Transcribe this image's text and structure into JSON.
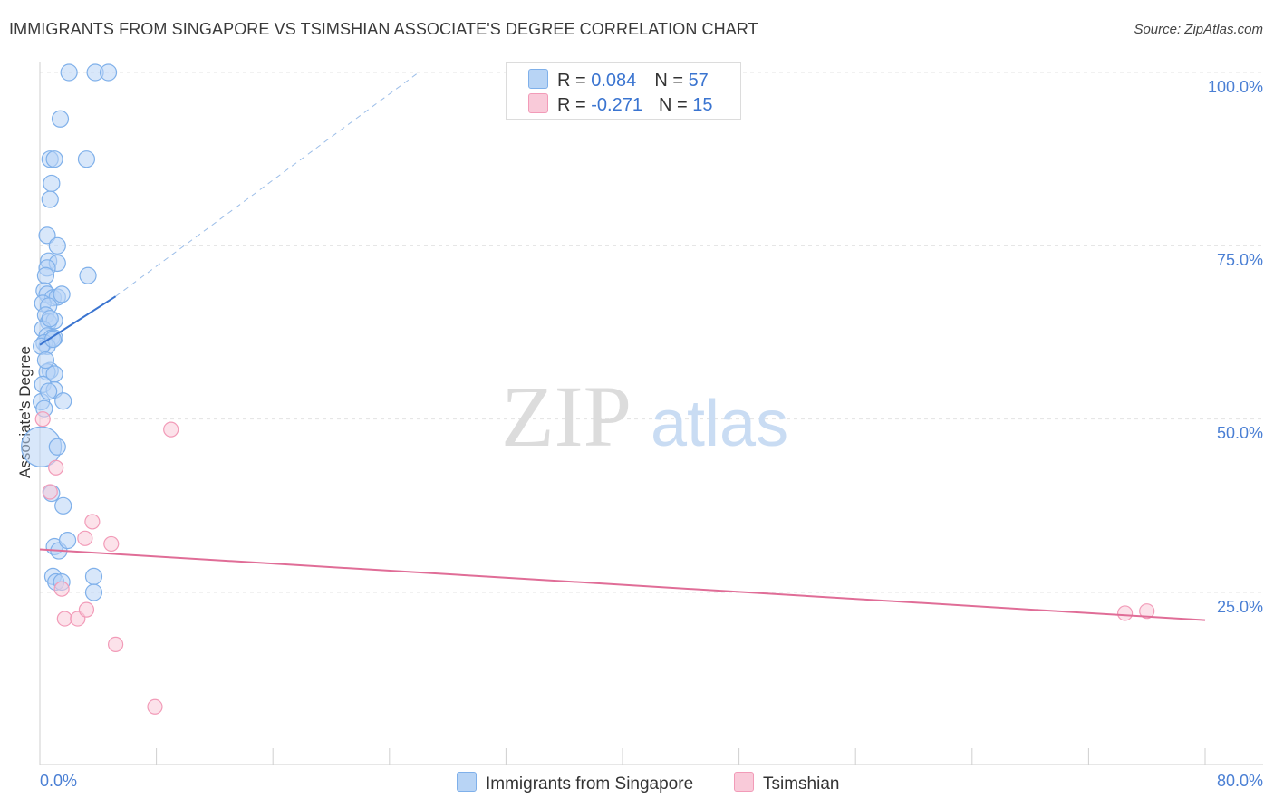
{
  "chart_data": {
    "type": "scatter",
    "title": "IMMIGRANTS FROM SINGAPORE VS TSIMSHIAN ASSOCIATE'S DEGREE CORRELATION CHART",
    "source": "Source: ZipAtlas.com",
    "ylabel": "Associate's Degree",
    "xlabel": "",
    "xlim": [
      0,
      80
    ],
    "ylim": [
      0,
      102
    ],
    "x_tick_labels": [
      "0.0%",
      "80.0%"
    ],
    "y_tick_labels": [
      "100.0%",
      "75.0%",
      "50.0%",
      "25.0%"
    ],
    "y_tick_values": [
      100,
      75,
      50,
      25
    ],
    "watermark": {
      "zip": "ZIP",
      "atlas": "atlas"
    },
    "legend": [
      {
        "r_label": "R = ",
        "r_value": "0.084",
        "n_label": "N = ",
        "n_value": "57"
      },
      {
        "r_label": "R = ",
        "r_value": "-0.271",
        "n_label": "N = ",
        "n_value": "15"
      }
    ],
    "series": [
      {
        "name": "Immigrants from Singapore",
        "color": "#7fb0ea",
        "fill": "#b8d4f5",
        "trend": {
          "x0": 0,
          "y0": 60.7,
          "x1": 5.2,
          "y1": 67.7,
          "dash_x1": 26,
          "dash_y1": 100
        },
        "points": [
          [
            2.0,
            100
          ],
          [
            3.8,
            100
          ],
          [
            4.7,
            100
          ],
          [
            1.4,
            93.3
          ],
          [
            0.7,
            87.5
          ],
          [
            1.0,
            87.5
          ],
          [
            3.2,
            87.5
          ],
          [
            0.8,
            84.0
          ],
          [
            0.7,
            81.7
          ],
          [
            0.5,
            76.5
          ],
          [
            1.2,
            75.0
          ],
          [
            0.6,
            72.8
          ],
          [
            1.2,
            72.5
          ],
          [
            0.5,
            71.8
          ],
          [
            0.4,
            70.7
          ],
          [
            3.3,
            70.7
          ],
          [
            0.3,
            68.5
          ],
          [
            0.5,
            68.0
          ],
          [
            0.9,
            67.5
          ],
          [
            1.2,
            67.6
          ],
          [
            1.5,
            68.0
          ],
          [
            0.2,
            66.7
          ],
          [
            0.6,
            66.3
          ],
          [
            0.4,
            65.0
          ],
          [
            0.6,
            64.0
          ],
          [
            1.0,
            64.2
          ],
          [
            0.2,
            63.0
          ],
          [
            0.5,
            62.0
          ],
          [
            0.8,
            61.7
          ],
          [
            1.0,
            61.7
          ],
          [
            0.3,
            61.0
          ],
          [
            0.5,
            60.5
          ],
          [
            0.1,
            60.5
          ],
          [
            0.7,
            57.0
          ],
          [
            0.5,
            56.8
          ],
          [
            1.0,
            56.5
          ],
          [
            0.2,
            55.0
          ],
          [
            1.0,
            54.2
          ],
          [
            1.6,
            52.6
          ],
          [
            0.1,
            52.5
          ],
          [
            0.3,
            51.5
          ],
          [
            0.1,
            46.0
          ],
          [
            1.2,
            46.0
          ],
          [
            0.8,
            39.3
          ],
          [
            1.6,
            37.5
          ],
          [
            1.0,
            31.6
          ],
          [
            1.3,
            31.0
          ],
          [
            1.9,
            32.5
          ],
          [
            0.9,
            27.3
          ],
          [
            1.1,
            26.5
          ],
          [
            1.5,
            26.5
          ],
          [
            3.7,
            27.3
          ],
          [
            3.7,
            25.0
          ],
          [
            0.6,
            54.0
          ],
          [
            0.4,
            58.5
          ],
          [
            0.9,
            61.5
          ],
          [
            0.7,
            64.5
          ]
        ],
        "point_sizes": [
          9,
          9,
          9,
          9,
          9,
          9,
          9,
          9,
          9,
          9,
          9,
          9,
          9,
          9,
          9,
          9,
          9,
          9,
          9,
          9,
          9,
          9,
          9,
          9,
          9,
          9,
          9,
          9,
          9,
          9,
          9,
          9,
          9,
          9,
          9,
          9,
          9,
          9,
          9,
          9,
          9,
          22,
          9,
          9,
          9,
          9,
          9,
          9,
          9,
          9,
          9,
          9,
          9,
          9,
          9,
          9,
          9
        ]
      },
      {
        "name": "Tsimshian",
        "color": "#f29bb8",
        "fill": "#f9cad9",
        "trend": {
          "x0": 0,
          "y0": 31.2,
          "x1": 80,
          "y1": 21.0
        },
        "points": [
          [
            0.2,
            50.0
          ],
          [
            9.0,
            48.5
          ],
          [
            1.1,
            43.0
          ],
          [
            0.7,
            39.5
          ],
          [
            3.6,
            35.2
          ],
          [
            3.1,
            32.8
          ],
          [
            4.9,
            32.0
          ],
          [
            1.5,
            25.5
          ],
          [
            1.7,
            21.2
          ],
          [
            2.6,
            21.2
          ],
          [
            3.2,
            22.5
          ],
          [
            5.2,
            17.5
          ],
          [
            7.9,
            8.5
          ],
          [
            74.5,
            22.0
          ],
          [
            76.0,
            22.3
          ]
        ]
      }
    ]
  }
}
